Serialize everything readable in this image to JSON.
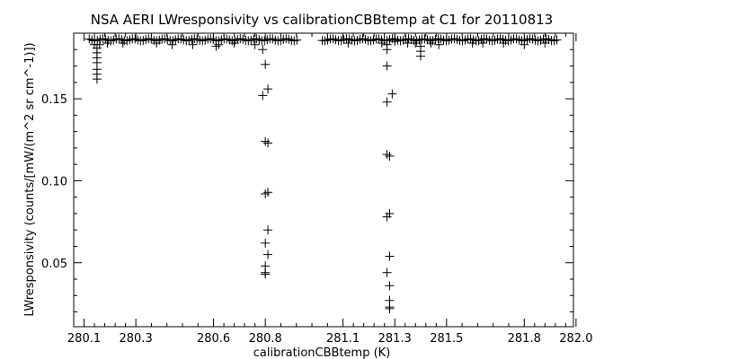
{
  "chart_data": {
    "type": "scatter",
    "title": "NSA AERI LWresponsivity vs calibrationCBBtemp at C1 for 20110813",
    "xlabel": "calibrationCBBtemp (K)",
    "ylabel": "LWresponsivity (counts/[mW/(m^2 sr cm^-1)])",
    "xlim": [
      280.06,
      281.99
    ],
    "ylim": [
      0.011,
      0.19
    ],
    "x_ticks": [
      280.1,
      280.3,
      280.6,
      280.8,
      281.1,
      281.3,
      281.5,
      281.8,
      282.0
    ],
    "x_tick_labels": [
      "280.1",
      "280.3",
      "280.6",
      "280.8",
      "281.1",
      "281.3",
      "281.5",
      "281.8",
      "282.0"
    ],
    "y_ticks": [
      0.05,
      0.1,
      0.15
    ],
    "y_tick_labels": [
      "0.05",
      "0.10",
      "0.15"
    ],
    "marker": "plus",
    "grid": false,
    "plateau_value": 0.186,
    "plateau_segments": [
      [
        280.12,
        280.93
      ],
      [
        281.02,
        281.93
      ]
    ],
    "points": [
      [
        280.15,
        0.178
      ],
      [
        280.15,
        0.175
      ],
      [
        280.15,
        0.172
      ],
      [
        280.15,
        0.168
      ],
      [
        280.15,
        0.165
      ],
      [
        280.15,
        0.162
      ],
      [
        280.15,
        0.181
      ],
      [
        280.16,
        0.183
      ],
      [
        280.14,
        0.183
      ],
      [
        280.19,
        0.184
      ],
      [
        280.25,
        0.184
      ],
      [
        280.38,
        0.184
      ],
      [
        280.44,
        0.183
      ],
      [
        280.52,
        0.183
      ],
      [
        280.61,
        0.182
      ],
      [
        280.62,
        0.183
      ],
      [
        280.68,
        0.184
      ],
      [
        280.76,
        0.183
      ],
      [
        281.12,
        0.184
      ],
      [
        281.25,
        0.184
      ],
      [
        281.27,
        0.183
      ],
      [
        281.3,
        0.185
      ],
      [
        281.35,
        0.184
      ],
      [
        281.38,
        0.184
      ],
      [
        281.4,
        0.182
      ],
      [
        281.4,
        0.179
      ],
      [
        281.4,
        0.176
      ],
      [
        281.44,
        0.184
      ],
      [
        281.47,
        0.183
      ],
      [
        281.6,
        0.184
      ],
      [
        281.64,
        0.184
      ],
      [
        281.72,
        0.184
      ],
      [
        281.8,
        0.183
      ],
      [
        281.88,
        0.184
      ],
      [
        280.79,
        0.18
      ],
      [
        280.8,
        0.171
      ],
      [
        280.81,
        0.156
      ],
      [
        280.79,
        0.152
      ],
      [
        280.8,
        0.124
      ],
      [
        280.81,
        0.123
      ],
      [
        280.8,
        0.092
      ],
      [
        280.81,
        0.093
      ],
      [
        280.81,
        0.07
      ],
      [
        280.8,
        0.062
      ],
      [
        280.81,
        0.055
      ],
      [
        280.8,
        0.048
      ],
      [
        280.8,
        0.044
      ],
      [
        280.8,
        0.043
      ],
      [
        281.27,
        0.18
      ],
      [
        281.27,
        0.17
      ],
      [
        281.29,
        0.153
      ],
      [
        281.27,
        0.148
      ],
      [
        281.27,
        0.116
      ],
      [
        281.28,
        0.115
      ],
      [
        281.28,
        0.08
      ],
      [
        281.27,
        0.078
      ],
      [
        281.28,
        0.054
      ],
      [
        281.27,
        0.044
      ],
      [
        281.28,
        0.036
      ],
      [
        281.28,
        0.027
      ],
      [
        281.28,
        0.023
      ],
      [
        281.28,
        0.022
      ]
    ]
  }
}
